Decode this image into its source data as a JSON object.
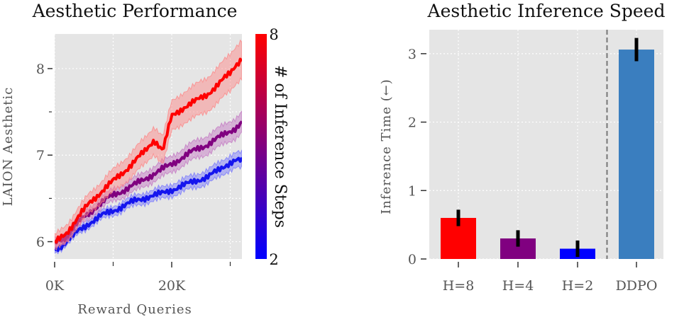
{
  "chart_data": [
    {
      "type": "line",
      "title": "Aesthetic Performance",
      "xlabel": "Reward Queries",
      "ylabel": "LAION Aesthetic",
      "xlim": [
        0,
        32000
      ],
      "ylim": [
        5.8,
        8.4
      ],
      "x_ticks": [
        {
          "value": 0,
          "label": "0K"
        },
        {
          "value": 20000,
          "label": "20K"
        }
      ],
      "y_ticks": [
        {
          "value": 6,
          "label": "6"
        },
        {
          "value": 7,
          "label": "7"
        },
        {
          "value": 8,
          "label": "8"
        }
      ],
      "grid": true,
      "colorbar": {
        "label": "# of Inference Steps",
        "min": 2,
        "max": 8,
        "min_label": "2",
        "max_label": "8",
        "colors": [
          "#0000ff",
          "#ff0000"
        ]
      },
      "series": [
        {
          "name": "H=2",
          "color": "#1515ee",
          "band_color": "#7070ff",
          "x": [
            0,
            2000,
            4000,
            6000,
            8000,
            10000,
            12000,
            14000,
            16000,
            18000,
            20000,
            22000,
            24000,
            26000,
            28000,
            30000,
            31000,
            32000
          ],
          "y": [
            5.9,
            6.0,
            6.12,
            6.22,
            6.3,
            6.36,
            6.42,
            6.48,
            6.52,
            6.55,
            6.6,
            6.65,
            6.7,
            6.75,
            6.82,
            6.92,
            6.95,
            6.93
          ],
          "band": 0.09
        },
        {
          "name": "H=4",
          "color": "#800080",
          "band_color": "#c070c0",
          "x": [
            0,
            2000,
            4000,
            6000,
            8000,
            10000,
            12000,
            14000,
            16000,
            18000,
            20000,
            22000,
            24000,
            26000,
            28000,
            30000,
            31000,
            32000
          ],
          "y": [
            5.98,
            6.06,
            6.22,
            6.34,
            6.45,
            6.54,
            6.6,
            6.67,
            6.75,
            6.82,
            6.9,
            6.98,
            7.06,
            7.12,
            7.2,
            7.28,
            7.32,
            7.38
          ],
          "band": 0.12
        },
        {
          "name": "H=8",
          "color": "#ff0000",
          "band_color": "#ff8080",
          "x": [
            0,
            2000,
            4000,
            6000,
            8000,
            10000,
            12000,
            14000,
            15500,
            17000,
            18500,
            20000,
            22000,
            24000,
            26000,
            28000,
            30000,
            31000,
            32000
          ],
          "y": [
            5.98,
            6.1,
            6.28,
            6.45,
            6.58,
            6.7,
            6.82,
            6.95,
            7.05,
            7.18,
            7.05,
            7.45,
            7.55,
            7.62,
            7.7,
            7.82,
            7.95,
            8.05,
            8.12
          ],
          "band": 0.22
        }
      ]
    },
    {
      "type": "bar",
      "title": "Aesthetic Inference Speed",
      "ylabel": "Inference Time (←)",
      "ylim": [
        0,
        3.35
      ],
      "y_ticks": [
        {
          "value": 0,
          "label": "0"
        },
        {
          "value": 1,
          "label": "1"
        },
        {
          "value": 2,
          "label": "2"
        },
        {
          "value": 3,
          "label": "3"
        }
      ],
      "categories": [
        "H=8",
        "H=4",
        "H=2",
        "DDPO"
      ],
      "values": [
        0.6,
        0.3,
        0.15,
        3.06
      ],
      "errors": [
        0.12,
        0.12,
        0.12,
        0.17
      ],
      "colors": [
        "#ff0000",
        "#800080",
        "#0000ff",
        "#3a7ebf"
      ],
      "separator_after": "H=2",
      "grid": true
    }
  ]
}
